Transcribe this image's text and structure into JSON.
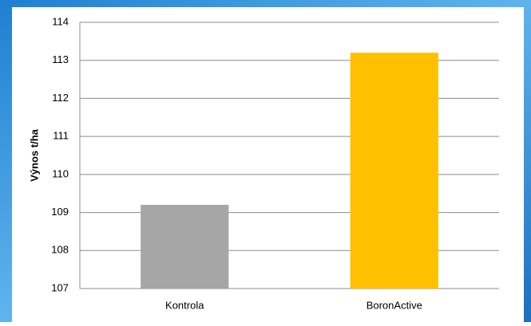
{
  "chart_data": {
    "type": "bar",
    "y_label": "Výnos t/ha",
    "categories": [
      "Kontrola",
      "BoronActive"
    ],
    "values": [
      109.2,
      113.2
    ],
    "colors": [
      "#a6a6a6",
      "#ffc000"
    ],
    "ylim": [
      107,
      114
    ],
    "yticks": [
      107,
      108,
      109,
      110,
      111,
      112,
      113,
      114
    ],
    "grid": true
  }
}
